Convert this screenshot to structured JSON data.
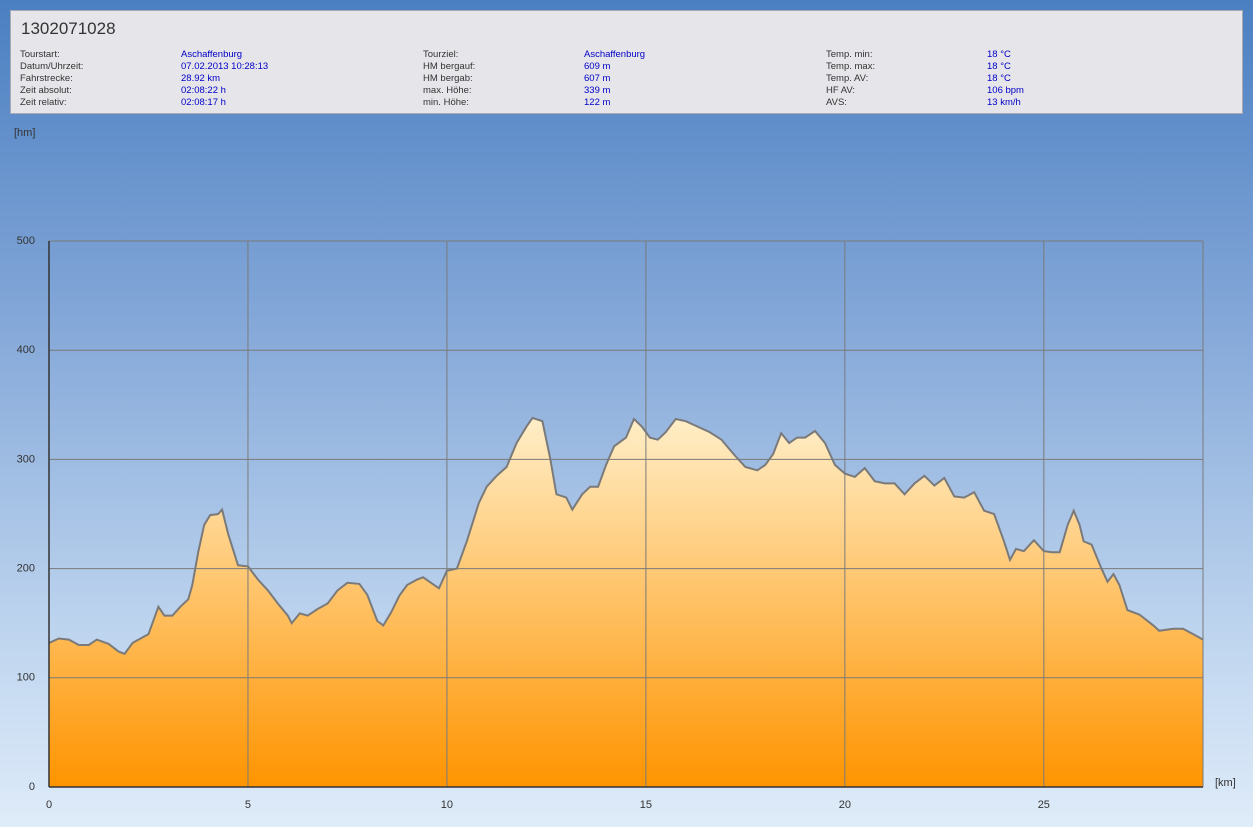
{
  "header": {
    "title": "1302071028",
    "fields": [
      {
        "label": "Tourstart:",
        "value": "Aschaffenburg"
      },
      {
        "label": "Datum/Uhrzeit:",
        "value": "07.02.2013 10:28:13"
      },
      {
        "label": "Fahrstrecke:",
        "value": "28.92 km"
      },
      {
        "label": "Zeit absolut:",
        "value": "02:08:22 h"
      },
      {
        "label": "Zeit relativ:",
        "value": "02:08:17 h"
      },
      {
        "label": "Tourziel:",
        "value": "Aschaffenburg"
      },
      {
        "label": "HM bergauf:",
        "value": "609 m"
      },
      {
        "label": "HM bergab:",
        "value": "607 m"
      },
      {
        "label": "max. Höhe:",
        "value": "339 m"
      },
      {
        "label": "min. Höhe:",
        "value": "122 m"
      },
      {
        "label": "Temp. min:",
        "value": "18 °C"
      },
      {
        "label": "Temp. max:",
        "value": "18 °C"
      },
      {
        "label": "Temp. AV:",
        "value": "18 °C"
      },
      {
        "label": "HF AV:",
        "value": "106 bpm"
      },
      {
        "label": "AVS:",
        "value": "13 km/h"
      }
    ]
  },
  "chart_data": {
    "type": "area",
    "ylabel": "[hm]",
    "xlabel": "[km]",
    "xlim": [
      0,
      29
    ],
    "ylim": [
      0,
      500
    ],
    "xticks": [
      0,
      5,
      10,
      15,
      20,
      25
    ],
    "yticks": [
      0,
      100,
      200,
      300,
      400,
      500
    ],
    "grid": true,
    "color": "#ff9a10",
    "line_color": "#7a7a7a",
    "x": [
      0,
      0.25,
      0.5,
      0.75,
      1.0,
      1.2,
      1.5,
      1.75,
      1.9,
      2.1,
      2.5,
      2.75,
      2.9,
      3.1,
      3.3,
      3.5,
      3.6,
      3.75,
      3.9,
      4.05,
      4.25,
      4.35,
      4.5,
      4.75,
      5.0,
      5.25,
      5.5,
      5.75,
      6.0,
      6.1,
      6.3,
      6.5,
      6.75,
      7.0,
      7.25,
      7.5,
      7.8,
      8.0,
      8.25,
      8.4,
      8.6,
      8.8,
      9.0,
      9.25,
      9.4,
      9.6,
      9.8,
      10.0,
      10.25,
      10.5,
      10.8,
      11.0,
      11.25,
      11.5,
      11.75,
      12.0,
      12.15,
      12.4,
      12.6,
      12.75,
      13.0,
      13.15,
      13.4,
      13.6,
      13.8,
      14.0,
      14.2,
      14.5,
      14.7,
      14.9,
      15.1,
      15.3,
      15.5,
      15.75,
      16.0,
      16.3,
      16.6,
      16.9,
      17.2,
      17.5,
      17.8,
      18.0,
      18.2,
      18.4,
      18.6,
      18.8,
      19.0,
      19.25,
      19.5,
      19.75,
      20.0,
      20.25,
      20.5,
      20.75,
      21.0,
      21.25,
      21.5,
      21.75,
      22.0,
      22.25,
      22.5,
      22.75,
      23.0,
      23.25,
      23.5,
      23.75,
      24.0,
      24.15,
      24.3,
      24.5,
      24.75,
      25.0,
      25.2,
      25.4,
      25.6,
      25.75,
      25.9,
      26.0,
      26.2,
      26.45,
      26.6,
      26.75,
      26.9,
      27.1,
      27.4,
      27.75,
      27.9,
      28.25,
      28.5,
      28.75,
      29.0
    ],
    "values": [
      132,
      136,
      135,
      130,
      130,
      135,
      131,
      124,
      122,
      132,
      140,
      165,
      157,
      157,
      165,
      172,
      185,
      215,
      240,
      249,
      250,
      254,
      232,
      203,
      202,
      190,
      180,
      168,
      157,
      150,
      159,
      157,
      163,
      168,
      180,
      187,
      186,
      176,
      152,
      148,
      160,
      175,
      185,
      190,
      192,
      187,
      182,
      198,
      200,
      225,
      260,
      275,
      285,
      293,
      315,
      330,
      338,
      335,
      300,
      268,
      265,
      254,
      268,
      275,
      275,
      295,
      312,
      320,
      337,
      330,
      320,
      318,
      325,
      337,
      335,
      330,
      325,
      318,
      305,
      293,
      290,
      295,
      305,
      324,
      315,
      320,
      320,
      326,
      315,
      295,
      287,
      284,
      292,
      280,
      278,
      278,
      268,
      278,
      285,
      276,
      283,
      266,
      265,
      270,
      253,
      250,
      225,
      208,
      218,
      216,
      226,
      216,
      215,
      215,
      240,
      253,
      240,
      225,
      222,
      200,
      188,
      195,
      185,
      162,
      158,
      148,
      143,
      145,
      145,
      140,
      135
    ]
  }
}
